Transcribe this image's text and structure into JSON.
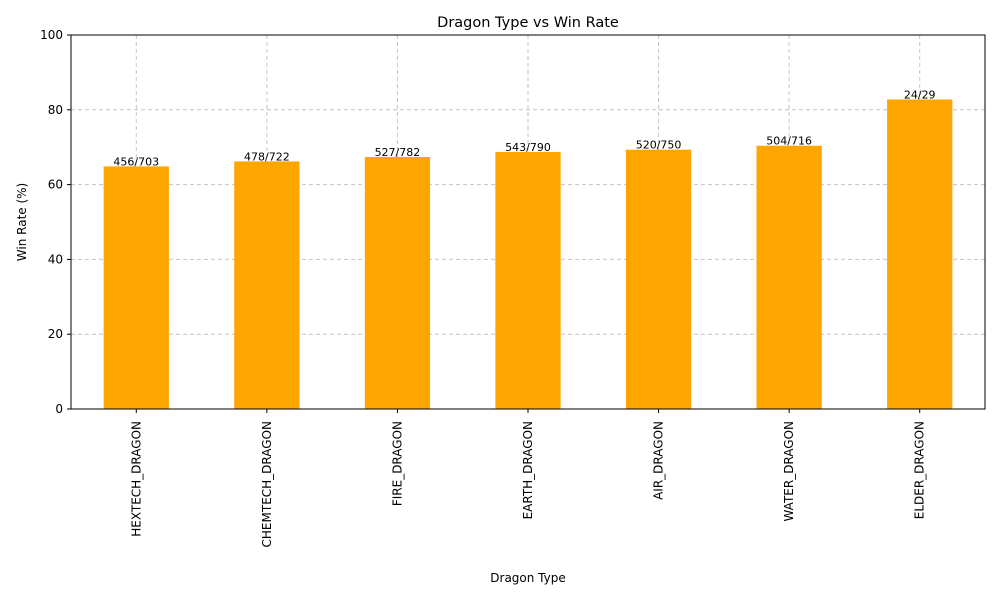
{
  "chart_data": {
    "type": "bar",
    "title": "Dragon Type vs Win Rate",
    "xlabel": "Dragon Type",
    "ylabel": "Win Rate (%)",
    "categories": [
      "HEXTECH_DRAGON",
      "CHEMTECH_DRAGON",
      "FIRE_DRAGON",
      "EARTH_DRAGON",
      "AIR_DRAGON",
      "WATER_DRAGON",
      "ELDER_DRAGON"
    ],
    "values": [
      64.86,
      66.2,
      67.39,
      68.73,
      69.33,
      70.39,
      82.76
    ],
    "data_labels": [
      "456/703",
      "478/722",
      "527/782",
      "543/790",
      "520/750",
      "504/716",
      "24/29"
    ],
    "ylim": [
      0,
      100
    ],
    "yticks": [
      0,
      20,
      40,
      60,
      80,
      100
    ],
    "grid": true,
    "bar_color": "#FFA500",
    "grid_color": "#c4c4c4"
  }
}
